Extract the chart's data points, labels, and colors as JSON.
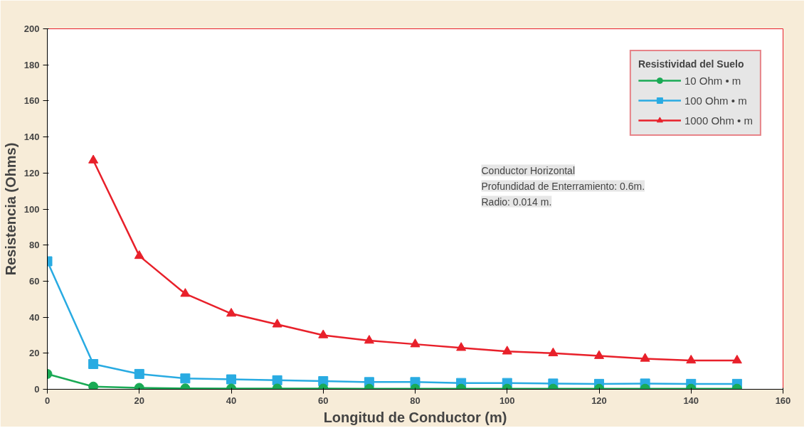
{
  "chart_data": {
    "type": "line",
    "xlabel": "Longitud de Conductor (m)",
    "ylabel": "Resistencia (Ohms)",
    "legend_title": "Resistividad del Suelo",
    "legend": "top right",
    "grid": false,
    "x": [
      0,
      10,
      20,
      30,
      40,
      50,
      60,
      70,
      80,
      90,
      100,
      110,
      120,
      130,
      140,
      150
    ],
    "xlim": [
      0,
      160
    ],
    "xticks": [
      0,
      20,
      40,
      60,
      80,
      100,
      120,
      140,
      160
    ],
    "ylim": [
      0,
      200
    ],
    "yticks": [
      0,
      20,
      40,
      60,
      80,
      100,
      120,
      140,
      160,
      180,
      200
    ],
    "series": [
      {
        "name": "10 Ohm • m",
        "color": "#1aaa55",
        "marker": "circle",
        "values": [
          8.5,
          1.5,
          0.8,
          0.5,
          0.4,
          0.4,
          0.4,
          0.3,
          0.3,
          0.3,
          0.3,
          0.3,
          0.3,
          0.3,
          0.3,
          0.3
        ]
      },
      {
        "name": "100 Ohm • m",
        "color": "#29abe2",
        "marker": "square",
        "values": [
          71,
          14,
          8.5,
          6,
          5.5,
          5,
          4.5,
          4,
          4,
          3.5,
          3.5,
          3.2,
          3,
          3.2,
          3,
          3
        ]
      },
      {
        "name": "1000 Ohm • m",
        "color": "#e8202a",
        "marker": "triangle",
        "values": [
          null,
          127,
          74,
          53,
          42,
          36,
          30,
          27,
          25,
          23,
          21,
          20,
          18.5,
          17,
          16,
          16
        ]
      }
    ],
    "annotations": [
      "Conductor Horizontal",
      "Profundidad de Enterramiento: 0.6m.",
      "Radio: 0.014 m."
    ]
  }
}
